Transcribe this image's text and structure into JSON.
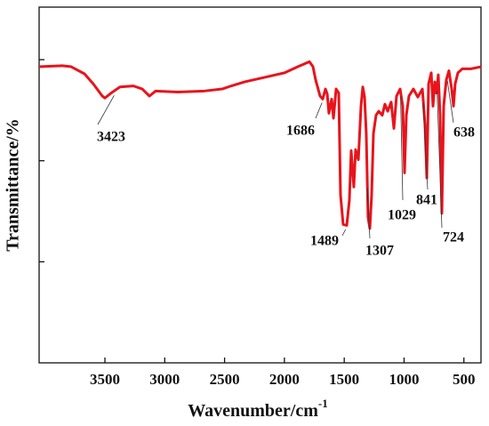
{
  "chart_data": {
    "type": "line",
    "xlabel": "Wavenumber/cm",
    "xlabel_sup": "-1",
    "ylabel": "Transmittance/%",
    "xlim": [
      4050,
      357
    ],
    "xticks": [
      3500,
      3000,
      2500,
      2000,
      1500,
      1000,
      500
    ],
    "ylim": [
      0,
      3.52
    ],
    "yticks": [
      1,
      2,
      3
    ],
    "ytick_labels": false,
    "x": [
      4050,
      3857,
      3782,
      3671,
      3597,
      3522,
      3500,
      3448,
      3374,
      3262,
      3188,
      3128,
      3076,
      2891,
      2668,
      2519,
      2445,
      2333,
      2148,
      1999,
      1888,
      1791,
      1761,
      1739,
      1702,
      1680,
      1657,
      1642,
      1628,
      1605,
      1590,
      1568,
      1546,
      1531,
      1509,
      1479,
      1457,
      1442,
      1420,
      1405,
      1382,
      1360,
      1345,
      1330,
      1316,
      1301,
      1286,
      1271,
      1256,
      1234,
      1212,
      1182,
      1160,
      1137,
      1108,
      1085,
      1063,
      1033,
      1011,
      996,
      981,
      959,
      922,
      885,
      847,
      825,
      810,
      795,
      773,
      758,
      743,
      729,
      714,
      699,
      684,
      669,
      647,
      625,
      602,
      587,
      573,
      550,
      513,
      439,
      357
    ],
    "series": [
      {
        "color": "#e8141c",
        "values": [
          2.93,
          2.94,
          2.93,
          2.86,
          2.76,
          2.64,
          2.62,
          2.67,
          2.73,
          2.74,
          2.71,
          2.64,
          2.69,
          2.68,
          2.69,
          2.71,
          2.74,
          2.78,
          2.83,
          2.87,
          2.93,
          2.98,
          2.93,
          2.8,
          2.64,
          2.61,
          2.71,
          2.66,
          2.47,
          2.61,
          2.42,
          2.71,
          2.67,
          1.66,
          1.37,
          1.36,
          1.61,
          2.1,
          1.74,
          2.11,
          2.01,
          2.54,
          2.73,
          2.63,
          2.27,
          1.44,
          1.33,
          1.66,
          2.27,
          2.45,
          2.49,
          2.45,
          2.56,
          2.49,
          2.58,
          2.32,
          2.64,
          2.71,
          2.54,
          1.88,
          2.45,
          2.64,
          2.71,
          2.63,
          2.71,
          2.36,
          1.83,
          2.76,
          2.87,
          2.54,
          2.78,
          2.67,
          2.85,
          2.45,
          1.48,
          2.54,
          2.8,
          2.89,
          2.71,
          2.54,
          2.76,
          2.87,
          2.91,
          2.91,
          2.93
        ]
      }
    ],
    "peaks": [
      3423,
      1686,
      1489,
      1307,
      1029,
      841,
      724,
      638
    ]
  }
}
